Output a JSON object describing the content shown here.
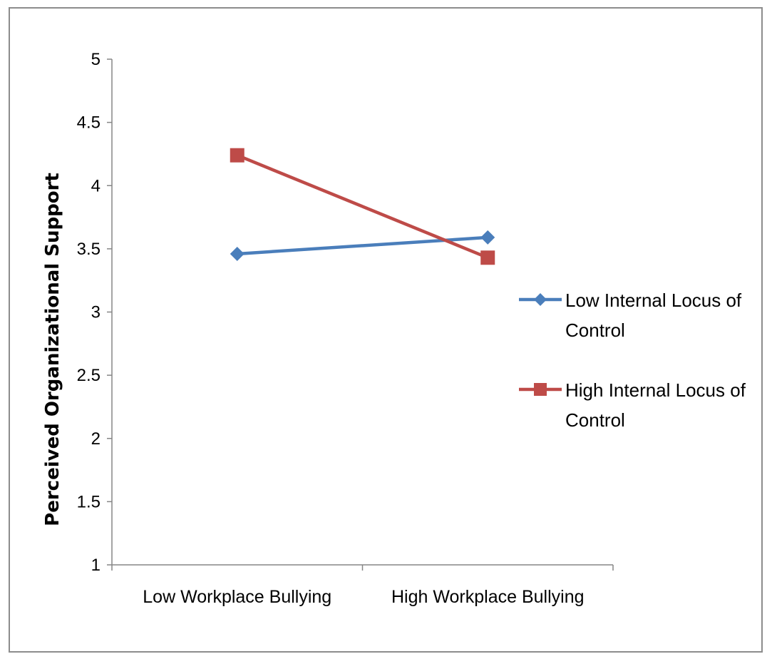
{
  "chart_data": {
    "type": "line",
    "title": "",
    "xlabel": "",
    "ylabel": "Perceived Organizational Support",
    "categories": [
      "Low Workplace Bullying",
      "High Workplace Bullying"
    ],
    "ylim": [
      1,
      5
    ],
    "yticks": [
      1,
      1.5,
      2,
      2.5,
      3,
      3.5,
      4,
      4.5,
      5
    ],
    "grid": false,
    "legend": "right",
    "series": [
      {
        "name": "Low Internal Locus of Control",
        "name_lines": [
          "Low Internal Locus of",
          "Control"
        ],
        "values": [
          3.46,
          3.59
        ],
        "color": "#4a7ebb",
        "marker": "diamond"
      },
      {
        "name": "High Internal Locus of Control",
        "name_lines": [
          "High Internal Locus of",
          "Control"
        ],
        "values": [
          4.24,
          3.43
        ],
        "color": "#be4b48",
        "marker": "square"
      }
    ]
  }
}
